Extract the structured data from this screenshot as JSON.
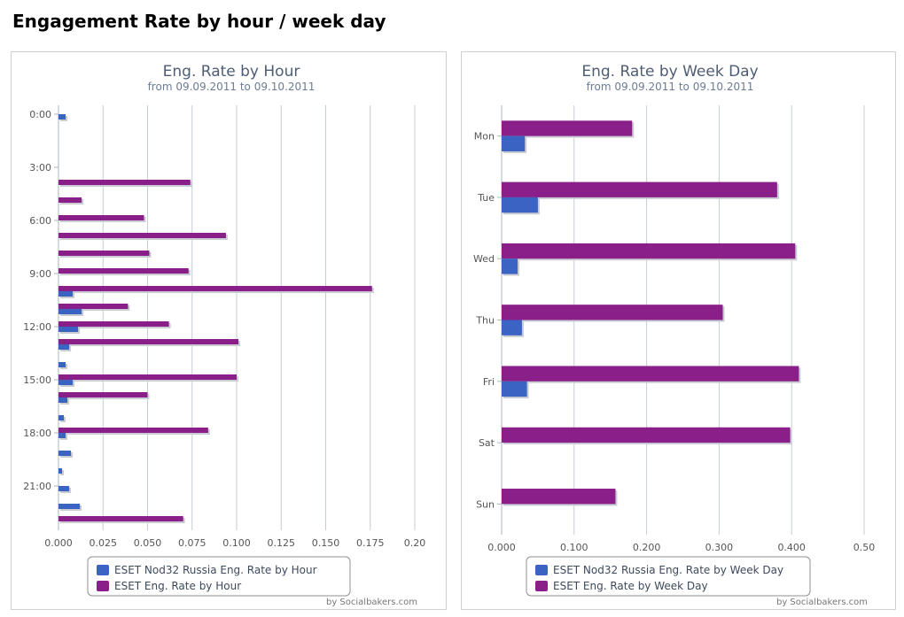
{
  "page": {
    "title": "Engagement Rate by hour / week day"
  },
  "credit": "by Socialbakers.com",
  "colors": {
    "nod32": "#3a63c4",
    "eset": "#8a1f8a",
    "grid": "#c4ccd4",
    "title": "#4e5d73"
  },
  "chart_data": [
    {
      "type": "bar",
      "orientation": "horizontal",
      "title": "Eng. Rate by Hour",
      "subtitle": "from 09.09.2011 to 09.10.2011",
      "categories": [
        "0:00",
        "1:00",
        "2:00",
        "3:00",
        "4:00",
        "5:00",
        "6:00",
        "7:00",
        "8:00",
        "9:00",
        "10:00",
        "11:00",
        "12:00",
        "13:00",
        "14:00",
        "15:00",
        "16:00",
        "17:00",
        "18:00",
        "19:00",
        "20:00",
        "21:00",
        "22:00",
        "23:00"
      ],
      "category_labels": [
        "0:00",
        "3:00",
        "6:00",
        "9:00",
        "12:00",
        "15:00",
        "18:00",
        "21:00"
      ],
      "series": [
        {
          "name": "ESET Eng. Rate by Hour",
          "color": "#8a1f8a",
          "values": [
            0,
            0,
            0,
            0,
            0.074,
            0.013,
            0.048,
            0.094,
            0.051,
            0.073,
            0.176,
            0.039,
            0.062,
            0.101,
            0,
            0.1,
            0.05,
            0,
            0.084,
            0,
            0,
            0,
            0,
            0.07
          ]
        },
        {
          "name": "ESET Nod32 Russia Eng. Rate by Hour",
          "color": "#3a63c4",
          "values": [
            0.004,
            0,
            0,
            0,
            0,
            0,
            0,
            0,
            0,
            0,
            0.008,
            0.013,
            0.011,
            0.006,
            0.004,
            0.008,
            0.005,
            0.003,
            0.004,
            0.007,
            0.002,
            0.006,
            0.012,
            0
          ]
        }
      ],
      "x_ticks": [
        "0.000",
        "0.025",
        "0.050",
        "0.075",
        "0.100",
        "0.125",
        "0.150",
        "0.175",
        "0.20"
      ],
      "xlim": [
        0,
        0.2
      ],
      "grid": true,
      "legend": "bottom",
      "legend_items": [
        "ESET Nod32 Russia Eng. Rate by Hour",
        "ESET Eng. Rate by Hour"
      ]
    },
    {
      "type": "bar",
      "orientation": "horizontal",
      "title": "Eng. Rate by Week Day",
      "subtitle": "from 09.09.2011 to 09.10.2011",
      "categories": [
        "Mon",
        "Tue",
        "Wed",
        "Thu",
        "Fri",
        "Sat",
        "Sun"
      ],
      "category_labels": [
        "Mon",
        "Tue",
        "Wed",
        "Thu",
        "Fri",
        "Sat",
        "Sun"
      ],
      "series": [
        {
          "name": "ESET Eng. Rate by Week Day",
          "color": "#8a1f8a",
          "values": [
            0.18,
            0.38,
            0.405,
            0.305,
            0.41,
            0.398,
            0.157
          ]
        },
        {
          "name": "ESET Nod32 Russia Eng. Rate by Week Day",
          "color": "#3a63c4",
          "values": [
            0.032,
            0.05,
            0.022,
            0.028,
            0.035,
            0,
            0
          ]
        }
      ],
      "x_ticks": [
        "0.000",
        "0.100",
        "0.200",
        "0.300",
        "0.400",
        "0.50"
      ],
      "xlim": [
        0,
        0.5
      ],
      "grid": true,
      "legend": "bottom",
      "legend_items": [
        "ESET Nod32 Russia Eng. Rate by Week Day",
        "ESET Eng. Rate by Week Day"
      ]
    }
  ]
}
